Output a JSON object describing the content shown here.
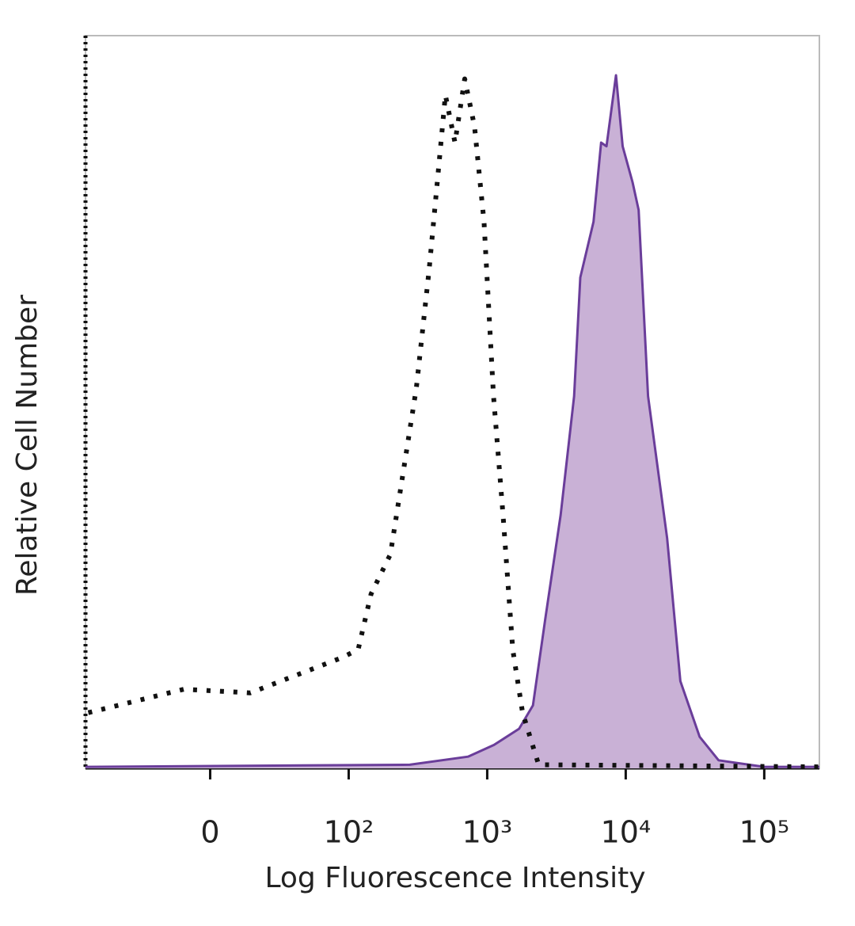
{
  "chart_data": {
    "type": "line",
    "xlabel": "Log Fluorescence Intensity",
    "ylabel": "Relative Cell Number",
    "xscale": "biexponential",
    "xlim": [
      -90,
      250000
    ],
    "xticks": [
      0,
      {
        "value": 100,
        "label": "10²"
      },
      {
        "value": 1000,
        "label": "10³"
      },
      {
        "value": 10000,
        "label": "10⁴"
      },
      {
        "value": 100000,
        "label": "10⁵"
      }
    ],
    "ylim": [
      0,
      100
    ],
    "series": [
      {
        "color": "#6a3d9a",
        "fill": "#c9b1d6",
        "dash": false,
        "x": [
          -90,
          276,
          727,
          1120,
          1700,
          2140,
          2630,
          3390,
          4240,
          4700,
          5850,
          6640,
          7260,
          8510,
          9500,
          11200,
          12400,
          14500,
          19900,
          24800,
          34200,
          46800,
          100000,
          250000
        ],
        "values": [
          0.2,
          0.5,
          1.6,
          3.2,
          5.4,
          8.6,
          20.5,
          34.6,
          50.8,
          67,
          74.6,
          85.4,
          84.9,
          94.6,
          84.9,
          80,
          76.2,
          50.8,
          31.4,
          11.9,
          4.3,
          1.1,
          0.2,
          0.2
        ]
      },
      {
        "color": "#111111",
        "fill": null,
        "dash": true,
        "x": [
          -88,
          -19,
          29,
          95,
          117,
          145,
          200,
          308,
          381,
          499,
          585,
          688,
          810,
          948,
          1110,
          1300,
          1530,
          1800,
          2350,
          250000
        ],
        "values": [
          7.6,
          10.8,
          10.3,
          15.1,
          16.2,
          23.8,
          29.2,
          51.9,
          68.1,
          91.9,
          85.4,
          94.1,
          87.6,
          74.6,
          50.8,
          34.6,
          16.2,
          7.6,
          0.5,
          0.2
        ]
      }
    ]
  }
}
